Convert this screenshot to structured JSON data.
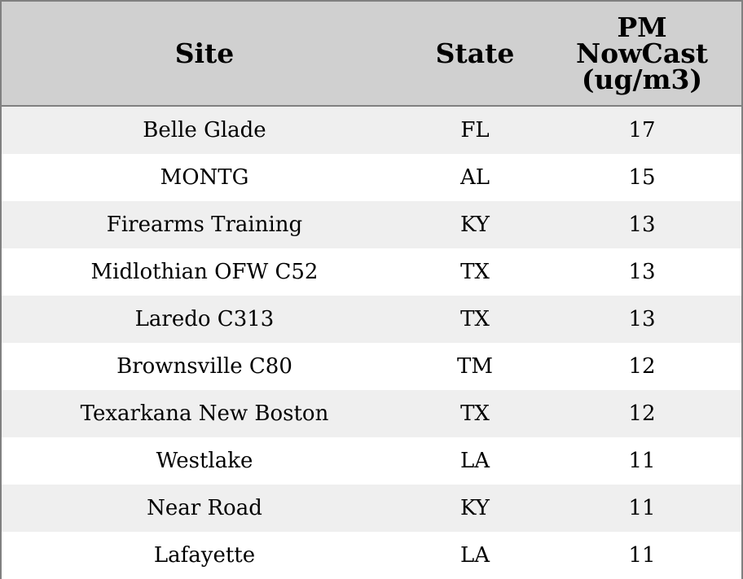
{
  "table": {
    "headers": [
      "Site",
      "State",
      "PM NowCast (ug/m3)"
    ],
    "rows": [
      [
        "Belle Glade",
        "FL",
        17
      ],
      [
        "MONTG",
        "AL",
        15
      ],
      [
        "Firearms Training",
        "KY",
        13
      ],
      [
        "Midlothian OFW C52",
        "TX",
        13
      ],
      [
        "Laredo C313",
        "TX",
        13
      ],
      [
        "Brownsville C80",
        "TM",
        12
      ],
      [
        "Texarkana New Boston",
        "TX",
        12
      ],
      [
        "Westlake",
        "LA",
        11
      ],
      [
        "Near Road",
        "KY",
        11
      ],
      [
        "Lafayette",
        "LA",
        11
      ]
    ]
  }
}
